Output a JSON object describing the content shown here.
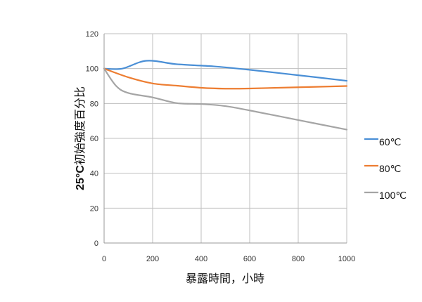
{
  "chart_data": {
    "type": "line",
    "title": "",
    "xlabel": "暴露時間，小時",
    "ylabel_bold": "25°C",
    "ylabel_rest": "初始強度百分比",
    "xlim": [
      0,
      1000
    ],
    "ylim": [
      0,
      120
    ],
    "xticks": [
      0,
      200,
      400,
      600,
      800,
      1000
    ],
    "yticks": [
      0,
      20,
      40,
      60,
      80,
      100,
      120
    ],
    "grid": true,
    "legend_position": "right",
    "series": [
      {
        "name": "60℃",
        "color": "#4a8fd6",
        "x": [
          0,
          75,
          175,
          300,
          450,
          600,
          800,
          1000
        ],
        "y": [
          100,
          100,
          104.5,
          102.5,
          101.3,
          99.3,
          96.2,
          93
        ]
      },
      {
        "name": "80℃",
        "color": "#ed7d31",
        "x": [
          0,
          100,
          200,
          300,
          400,
          500,
          600,
          800,
          1000
        ],
        "y": [
          100,
          95,
          91.5,
          90.2,
          89,
          88.5,
          88.6,
          89.3,
          90
        ]
      },
      {
        "name": "100℃",
        "color": "#a5a5a5",
        "x": [
          0,
          50,
          100,
          200,
          300,
          400,
          500,
          600,
          800,
          1000
        ],
        "y": [
          100,
          90,
          86,
          83.5,
          80.2,
          79.7,
          78.5,
          76,
          70.5,
          65
        ]
      }
    ]
  }
}
